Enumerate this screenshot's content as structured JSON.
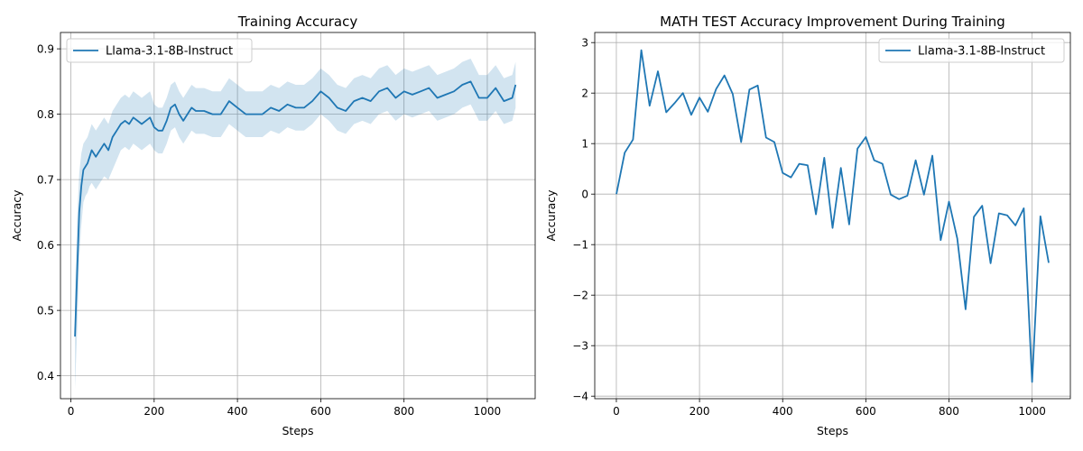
{
  "chart_data": [
    {
      "type": "line",
      "title": "Training Accuracy",
      "xlabel": "Steps",
      "ylabel": "Accuracy",
      "xlim": [
        -25,
        1115
      ],
      "ylim": [
        0.365,
        0.925
      ],
      "xticks": [
        0,
        200,
        400,
        600,
        800,
        1000
      ],
      "yticks": [
        0.4,
        0.5,
        0.6,
        0.7,
        0.8,
        0.9
      ],
      "grid": true,
      "legend_position": "top-left",
      "line_color": "#1f77b4",
      "band_color": "#1f77b4",
      "series": [
        {
          "name": "Llama-3.1-8B-Instruct",
          "x": [
            10,
            15,
            20,
            25,
            30,
            35,
            40,
            45,
            50,
            55,
            60,
            65,
            70,
            80,
            90,
            100,
            110,
            120,
            130,
            140,
            150,
            160,
            170,
            180,
            190,
            200,
            210,
            220,
            230,
            240,
            250,
            260,
            270,
            280,
            290,
            300,
            320,
            340,
            360,
            380,
            400,
            420,
            440,
            460,
            480,
            500,
            520,
            540,
            560,
            580,
            600,
            620,
            640,
            660,
            680,
            700,
            720,
            740,
            760,
            780,
            800,
            820,
            840,
            860,
            880,
            900,
            920,
            940,
            960,
            980,
            1000,
            1020,
            1040,
            1060,
            1068
          ],
          "y": [
            0.46,
            0.56,
            0.65,
            0.69,
            0.715,
            0.72,
            0.725,
            0.735,
            0.745,
            0.74,
            0.735,
            0.74,
            0.745,
            0.755,
            0.745,
            0.765,
            0.775,
            0.785,
            0.79,
            0.785,
            0.795,
            0.79,
            0.785,
            0.79,
            0.795,
            0.78,
            0.775,
            0.775,
            0.79,
            0.81,
            0.815,
            0.8,
            0.79,
            0.8,
            0.81,
            0.805,
            0.805,
            0.8,
            0.8,
            0.82,
            0.81,
            0.8,
            0.8,
            0.8,
            0.81,
            0.805,
            0.815,
            0.81,
            0.81,
            0.82,
            0.835,
            0.825,
            0.81,
            0.805,
            0.82,
            0.825,
            0.82,
            0.835,
            0.84,
            0.825,
            0.835,
            0.83,
            0.835,
            0.84,
            0.825,
            0.83,
            0.835,
            0.845,
            0.85,
            0.825,
            0.825,
            0.84,
            0.82,
            0.825,
            0.845
          ],
          "lower": [
            0.38,
            0.47,
            0.58,
            0.63,
            0.665,
            0.675,
            0.68,
            0.69,
            0.695,
            0.69,
            0.685,
            0.69,
            0.695,
            0.705,
            0.7,
            0.715,
            0.73,
            0.745,
            0.75,
            0.745,
            0.755,
            0.75,
            0.745,
            0.75,
            0.755,
            0.745,
            0.74,
            0.74,
            0.755,
            0.775,
            0.78,
            0.765,
            0.755,
            0.765,
            0.775,
            0.77,
            0.77,
            0.765,
            0.765,
            0.785,
            0.775,
            0.765,
            0.765,
            0.765,
            0.775,
            0.77,
            0.78,
            0.775,
            0.775,
            0.785,
            0.8,
            0.79,
            0.775,
            0.77,
            0.785,
            0.79,
            0.785,
            0.8,
            0.805,
            0.79,
            0.8,
            0.795,
            0.8,
            0.805,
            0.79,
            0.795,
            0.8,
            0.81,
            0.815,
            0.79,
            0.79,
            0.805,
            0.785,
            0.79,
            0.81
          ],
          "upper": [
            0.53,
            0.64,
            0.71,
            0.74,
            0.755,
            0.76,
            0.765,
            0.775,
            0.785,
            0.78,
            0.775,
            0.78,
            0.785,
            0.795,
            0.785,
            0.805,
            0.815,
            0.825,
            0.83,
            0.825,
            0.835,
            0.83,
            0.825,
            0.83,
            0.835,
            0.815,
            0.81,
            0.81,
            0.825,
            0.845,
            0.85,
            0.835,
            0.825,
            0.835,
            0.845,
            0.84,
            0.84,
            0.835,
            0.835,
            0.855,
            0.845,
            0.835,
            0.835,
            0.835,
            0.845,
            0.84,
            0.85,
            0.845,
            0.845,
            0.855,
            0.87,
            0.86,
            0.845,
            0.84,
            0.855,
            0.86,
            0.855,
            0.87,
            0.875,
            0.86,
            0.87,
            0.865,
            0.87,
            0.875,
            0.86,
            0.865,
            0.87,
            0.88,
            0.885,
            0.86,
            0.86,
            0.875,
            0.855,
            0.86,
            0.88
          ]
        }
      ]
    },
    {
      "type": "line",
      "title": "MATH TEST Accuracy Improvement During Training",
      "xlabel": "Steps",
      "ylabel": "Accuracy",
      "xlim": [
        -52,
        1092
      ],
      "ylim": [
        -4.05,
        3.2
      ],
      "xticks": [
        0,
        200,
        400,
        600,
        800,
        1000
      ],
      "yticks": [
        -4,
        -3,
        -2,
        -1,
        0,
        1,
        2,
        3
      ],
      "grid": true,
      "legend_position": "top-right",
      "line_color": "#1f77b4",
      "series": [
        {
          "name": "Llama-3.1-8B-Instruct",
          "x": [
            0,
            20,
            40,
            60,
            80,
            100,
            120,
            140,
            160,
            180,
            200,
            220,
            240,
            260,
            280,
            300,
            320,
            340,
            360,
            380,
            400,
            420,
            440,
            460,
            480,
            500,
            520,
            540,
            560,
            580,
            600,
            620,
            640,
            660,
            680,
            700,
            720,
            740,
            760,
            780,
            800,
            820,
            840,
            860,
            880,
            900,
            920,
            940,
            960,
            980,
            1000,
            1020,
            1040
          ],
          "y": [
            0.0,
            0.82,
            1.08,
            2.85,
            1.75,
            2.43,
            1.62,
            1.8,
            2.0,
            1.57,
            1.91,
            1.63,
            2.08,
            2.35,
            1.98,
            1.03,
            2.07,
            2.15,
            1.12,
            1.03,
            0.42,
            0.33,
            0.6,
            0.57,
            -0.4,
            0.72,
            -0.67,
            0.52,
            -0.6,
            0.9,
            1.13,
            0.67,
            0.6,
            -0.01,
            -0.1,
            -0.03,
            0.67,
            -0.01,
            0.76,
            -0.91,
            -0.15,
            -0.88,
            -2.28,
            -0.45,
            -0.23,
            -1.37,
            -0.38,
            -0.42,
            -0.62,
            -0.28,
            -3.72,
            -0.44,
            -1.36
          ]
        }
      ]
    }
  ]
}
